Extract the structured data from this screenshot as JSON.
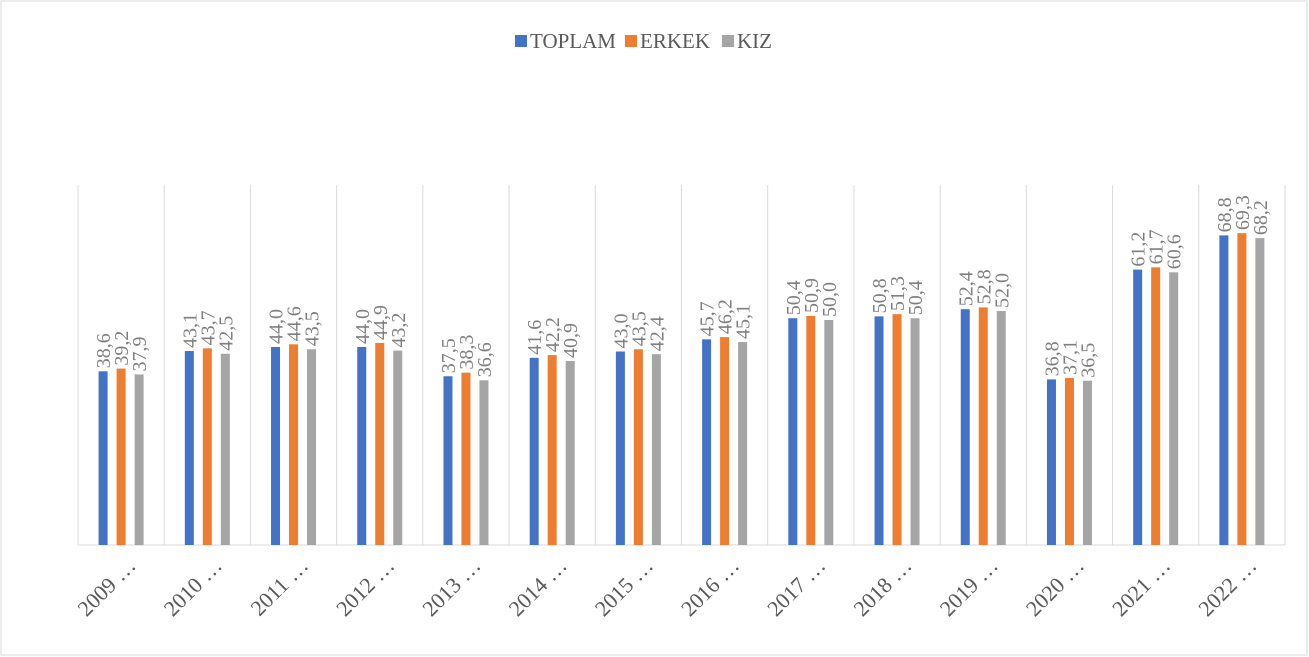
{
  "chart_data": {
    "type": "bar",
    "categories": [
      "2009 …",
      "2010 …",
      "2011 …",
      "2012 …",
      "2013 …",
      "2014 …",
      "2015 …",
      "2016 …",
      "2017 …",
      "2018 …",
      "2019 …",
      "2020 …",
      "2021 …",
      "2022 …"
    ],
    "series": [
      {
        "name": "TOPLAM",
        "color": "#4472c4",
        "values": [
          38.6,
          43.1,
          44.0,
          44.0,
          37.5,
          41.6,
          43.0,
          45.7,
          50.4,
          50.8,
          52.4,
          36.8,
          61.2,
          68.8
        ],
        "value_labels": [
          "38,6",
          "43,1",
          "44,0",
          "44,0",
          "37,5",
          "41,6",
          "43,0",
          "45,7",
          "50,4",
          "50,8",
          "52,4",
          "36,8",
          "61,2",
          "68,8"
        ]
      },
      {
        "name": "ERKEK",
        "color": "#ed7d31",
        "values": [
          39.2,
          43.7,
          44.6,
          44.9,
          38.3,
          42.2,
          43.5,
          46.2,
          50.9,
          51.3,
          52.8,
          37.1,
          61.7,
          69.3
        ],
        "value_labels": [
          "39,2",
          "43,7",
          "44,6",
          "44,9",
          "38,3",
          "42,2",
          "43,5",
          "46,2",
          "50,9",
          "51,3",
          "52,8",
          "37,1",
          "61,7",
          "69,3"
        ]
      },
      {
        "name": "KIZ",
        "color": "#a5a5a5",
        "values": [
          37.9,
          42.5,
          43.5,
          43.2,
          36.6,
          40.9,
          42.4,
          45.1,
          50.0,
          50.4,
          52.0,
          36.5,
          60.6,
          68.2
        ],
        "value_labels": [
          "37,9",
          "42,5",
          "43,5",
          "43,2",
          "36,6",
          "40,9",
          "42,4",
          "45,1",
          "50,0",
          "50,4",
          "52,0",
          "36,5",
          "60,6",
          "68,2"
        ]
      }
    ],
    "ylim": [
      0,
      80
    ],
    "legend": "top"
  }
}
